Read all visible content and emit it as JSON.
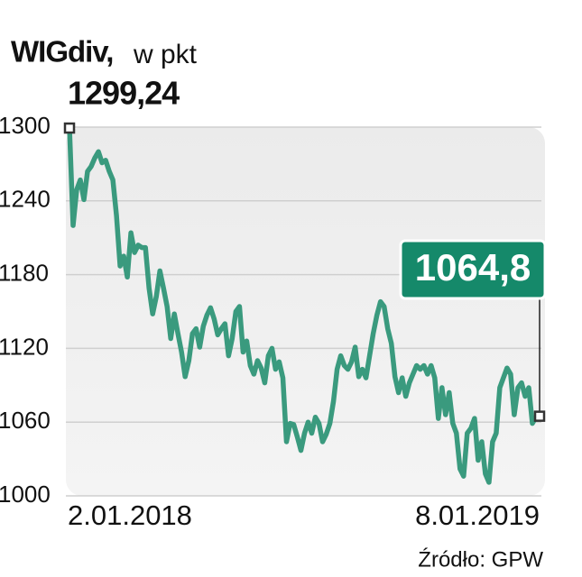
{
  "chart_data": {
    "type": "line",
    "title": "WIGdiv,",
    "subtitle": "w pkt",
    "source": "Źródło: GPW",
    "color": "#3a9a7e",
    "grid": true,
    "ylim": [
      1000,
      1300
    ],
    "yticks": [
      1000,
      1060,
      1120,
      1180,
      1240,
      1300
    ],
    "categories": [
      "2.01.2018",
      null,
      null,
      null,
      null,
      null,
      null,
      null,
      null,
      null,
      null,
      null,
      null,
      null,
      null,
      null,
      null,
      null,
      null,
      null,
      null,
      null,
      null,
      null,
      null,
      null,
      null,
      null,
      null,
      null,
      null,
      null,
      null,
      null,
      null,
      null,
      null,
      null,
      null,
      null,
      null,
      null,
      null,
      null,
      null,
      null,
      null,
      null,
      null,
      null,
      null,
      null,
      null,
      null,
      null,
      null,
      null,
      null,
      null,
      null,
      null,
      null,
      null,
      null,
      null,
      null,
      null,
      null,
      null,
      null,
      null,
      null,
      null,
      null,
      null,
      null,
      null,
      null,
      null,
      null,
      null,
      null,
      null,
      null,
      null,
      null,
      null,
      null,
      null,
      null,
      null,
      null,
      null,
      null,
      null,
      null,
      null,
      null,
      null,
      null,
      null,
      null,
      null,
      null,
      null,
      null,
      null,
      null,
      null,
      null,
      null,
      null,
      null,
      null,
      null,
      null,
      null,
      null,
      null,
      null,
      null,
      null,
      null,
      null,
      null,
      null,
      null,
      null,
      null,
      null,
      "8.01.2019"
    ],
    "values": [
      1299.24,
      1220,
      1249,
      1257,
      1241,
      1264,
      1268,
      1275,
      1280,
      1271,
      1273,
      1264,
      1257,
      1228,
      1187,
      1195,
      1178,
      1214,
      1198,
      1204,
      1202,
      1202,
      1169,
      1148,
      1162,
      1183,
      1169,
      1154,
      1128,
      1148,
      1132,
      1117,
      1097,
      1110,
      1132,
      1136,
      1121,
      1138,
      1147,
      1153,
      1144,
      1131,
      1136,
      1140,
      1114,
      1128,
      1150,
      1154,
      1117,
      1126,
      1106,
      1099,
      1110,
      1104,
      1092,
      1114,
      1120,
      1103,
      1109,
      1096,
      1044,
      1059,
      1058,
      1048,
      1037,
      1051,
      1060,
      1051,
      1064,
      1059,
      1044,
      1050,
      1059,
      1077,
      1103,
      1114,
      1106,
      1103,
      1109,
      1121,
      1097,
      1103,
      1096,
      1114,
      1132,
      1147,
      1158,
      1154,
      1136,
      1124,
      1097,
      1084,
      1096,
      1081,
      1092,
      1099,
      1106,
      1103,
      1106,
      1099,
      1106,
      1096,
      1063,
      1088,
      1066,
      1084,
      1059,
      1051,
      1022,
      1016,
      1051,
      1055,
      1063,
      1029,
      1044,
      1018,
      1011,
      1044,
      1051,
      1088,
      1096,
      1104,
      1099,
      1066,
      1088,
      1092,
      1081,
      1088,
      1059,
      1064,
      1064.8
    ],
    "value_labels": [
      "1299,24",
      null,
      null,
      null,
      null,
      null,
      null,
      null,
      null,
      null,
      null,
      null,
      null,
      null,
      null,
      null,
      null,
      null,
      null,
      null,
      null,
      null,
      null,
      null,
      null,
      null,
      null,
      null,
      null,
      null,
      null,
      null,
      null,
      null,
      null,
      null,
      null,
      null,
      null,
      null,
      null,
      null,
      null,
      null,
      null,
      null,
      null,
      null,
      null,
      null,
      null,
      null,
      null,
      null,
      null,
      null,
      null,
      null,
      null,
      null,
      null,
      null,
      null,
      null,
      null,
      null,
      null,
      null,
      null,
      null,
      null,
      null,
      null,
      null,
      null,
      null,
      null,
      null,
      null,
      null,
      null,
      null,
      null,
      null,
      null,
      null,
      null,
      null,
      null,
      null,
      null,
      null,
      null,
      null,
      null,
      null,
      null,
      null,
      null,
      null,
      null,
      null,
      null,
      null,
      null,
      null,
      null,
      null,
      null,
      null,
      null,
      null,
      null,
      null,
      null,
      null,
      null,
      null,
      null,
      null,
      null,
      null,
      null,
      null,
      null,
      null,
      null,
      null,
      null,
      null,
      "1064,8"
    ]
  }
}
